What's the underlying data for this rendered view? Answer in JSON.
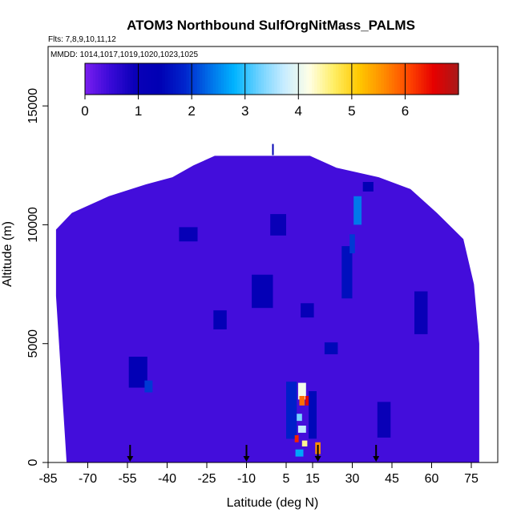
{
  "chart_data": {
    "type": "heatmap",
    "title": "ATOM3 Northbound SulfOrgNitMass_PALMS",
    "subtitle_flights": "Flts: 7,8,9,10,11,12",
    "subtitle_dates": "MMDD: 1014,1017,1019,1020,1023,1025",
    "xlabel": "Latitude (deg N)",
    "ylabel": "Altitude (m)",
    "xlim": [
      -85,
      85
    ],
    "ylim": [
      0,
      17500
    ],
    "x_tick_labels": [
      "-85",
      "-70",
      "-55",
      "-40",
      "-25",
      "-10",
      "5",
      "15",
      "30",
      "45",
      "60",
      "75"
    ],
    "x_tick_values": [
      -85,
      -70,
      -55,
      -40,
      -25,
      -10,
      5,
      15,
      30,
      45,
      60,
      75
    ],
    "y_tick_labels": [
      "0",
      "5000",
      "10000",
      "15000"
    ],
    "y_tick_values": [
      0,
      5000,
      10000,
      15000
    ],
    "colorbar": {
      "min": 0,
      "max": 7,
      "tick_labels": [
        "0",
        "1",
        "2",
        "3",
        "4",
        "5",
        "6"
      ],
      "tick_values": [
        0,
        1,
        2,
        3,
        4,
        5,
        6
      ],
      "palette": [
        "#7a1ef0",
        "#3a0ad8",
        "#0a00b8",
        "#0000b4",
        "#0024cc",
        "#006ee8",
        "#00b4ff",
        "#6ed2ff",
        "#c8ecff",
        "#ffffe6",
        "#ffee64",
        "#ffc800",
        "#ff8c00",
        "#ff4600",
        "#e60000",
        "#a81a1a"
      ]
    },
    "background_value": 0.4,
    "domain_top": [
      {
        "lat": -82,
        "alt": 9800
      },
      {
        "lat": -76,
        "alt": 10500
      },
      {
        "lat": -62,
        "alt": 11200
      },
      {
        "lat": -48,
        "alt": 11700
      },
      {
        "lat": -38,
        "alt": 12000
      },
      {
        "lat": -30,
        "alt": 12500
      },
      {
        "lat": -22,
        "alt": 12900
      },
      {
        "lat": 14,
        "alt": 12900
      },
      {
        "lat": 24,
        "alt": 12400
      },
      {
        "lat": 40,
        "alt": 12000
      },
      {
        "lat": 52,
        "alt": 11500
      },
      {
        "lat": 62,
        "alt": 10500
      },
      {
        "lat": 72,
        "alt": 9400
      },
      {
        "lat": 76,
        "alt": 7500
      },
      {
        "lat": 78,
        "alt": 5000
      },
      {
        "lat": 78,
        "alt": 0
      }
    ],
    "domain_bottom_left": [
      {
        "lat": -78,
        "alt": 0
      },
      {
        "lat": -80,
        "alt": 3500
      },
      {
        "lat": -82,
        "alt": 7000
      }
    ],
    "features": [
      {
        "lat": -51,
        "alt": 3800,
        "dlat": 7,
        "dalt": 1300,
        "value": 1.3
      },
      {
        "lat": -47,
        "alt": 3200,
        "dlat": 3,
        "dalt": 500,
        "value": 2.0
      },
      {
        "lat": -20,
        "alt": 6000,
        "dlat": 5,
        "dalt": 800,
        "value": 1.2
      },
      {
        "lat": -32,
        "alt": 9600,
        "dlat": 7,
        "dalt": 600,
        "value": 1.1
      },
      {
        "lat": -4,
        "alt": 7200,
        "dlat": 8,
        "dalt": 1400,
        "value": 1.2
      },
      {
        "lat": 2,
        "alt": 10000,
        "dlat": 6,
        "dalt": 900,
        "value": 1.0
      },
      {
        "lat": 28,
        "alt": 8000,
        "dlat": 4,
        "dalt": 2200,
        "value": 1.6
      },
      {
        "lat": 32,
        "alt": 10600,
        "dlat": 3,
        "dalt": 1200,
        "value": 2.4
      },
      {
        "lat": 30,
        "alt": 9200,
        "dlat": 2,
        "dalt": 800,
        "value": 2.0
      },
      {
        "lat": 36,
        "alt": 11600,
        "dlat": 4,
        "dalt": 400,
        "value": 1.3
      },
      {
        "lat": 56,
        "alt": 6300,
        "dlat": 5,
        "dalt": 1800,
        "value": 1.0
      },
      {
        "lat": 22,
        "alt": 4800,
        "dlat": 5,
        "dalt": 500,
        "value": 1.5
      },
      {
        "lat": 13,
        "alt": 6400,
        "dlat": 5,
        "dalt": 600,
        "value": 1.1
      },
      {
        "lat": 7,
        "alt": 2200,
        "dlat": 4,
        "dalt": 2400,
        "value": 1.8
      },
      {
        "lat": 11,
        "alt": 3000,
        "dlat": 3,
        "dalt": 700,
        "value": 4.1
      },
      {
        "lat": 11,
        "alt": 2600,
        "dlat": 2,
        "dalt": 400,
        "value": 5.8
      },
      {
        "lat": 13,
        "alt": 2600,
        "dlat": 1.5,
        "dalt": 400,
        "value": 6.6
      },
      {
        "lat": 10,
        "alt": 1900,
        "dlat": 2,
        "dalt": 300,
        "value": 3.3
      },
      {
        "lat": 11,
        "alt": 1400,
        "dlat": 3,
        "dalt": 300,
        "value": 3.7
      },
      {
        "lat": 12,
        "alt": 800,
        "dlat": 2,
        "dalt": 250,
        "value": 4.5
      },
      {
        "lat": 9,
        "alt": 1000,
        "dlat": 1.5,
        "dalt": 300,
        "value": 6.3
      },
      {
        "lat": 10,
        "alt": 400,
        "dlat": 3,
        "dalt": 300,
        "value": 2.7
      },
      {
        "lat": 17,
        "alt": 600,
        "dlat": 2,
        "dalt": 500,
        "value": 5.6
      },
      {
        "lat": 15,
        "alt": 2000,
        "dlat": 3,
        "dalt": 2000,
        "value": 1.5
      },
      {
        "lat": 42,
        "alt": 1800,
        "dlat": 5,
        "dalt": 1500,
        "value": 1.0
      }
    ],
    "arrows_lat": [
      -54,
      -10,
      17,
      39
    ],
    "top_marker": {
      "lat": 0,
      "alt": 13400
    }
  }
}
